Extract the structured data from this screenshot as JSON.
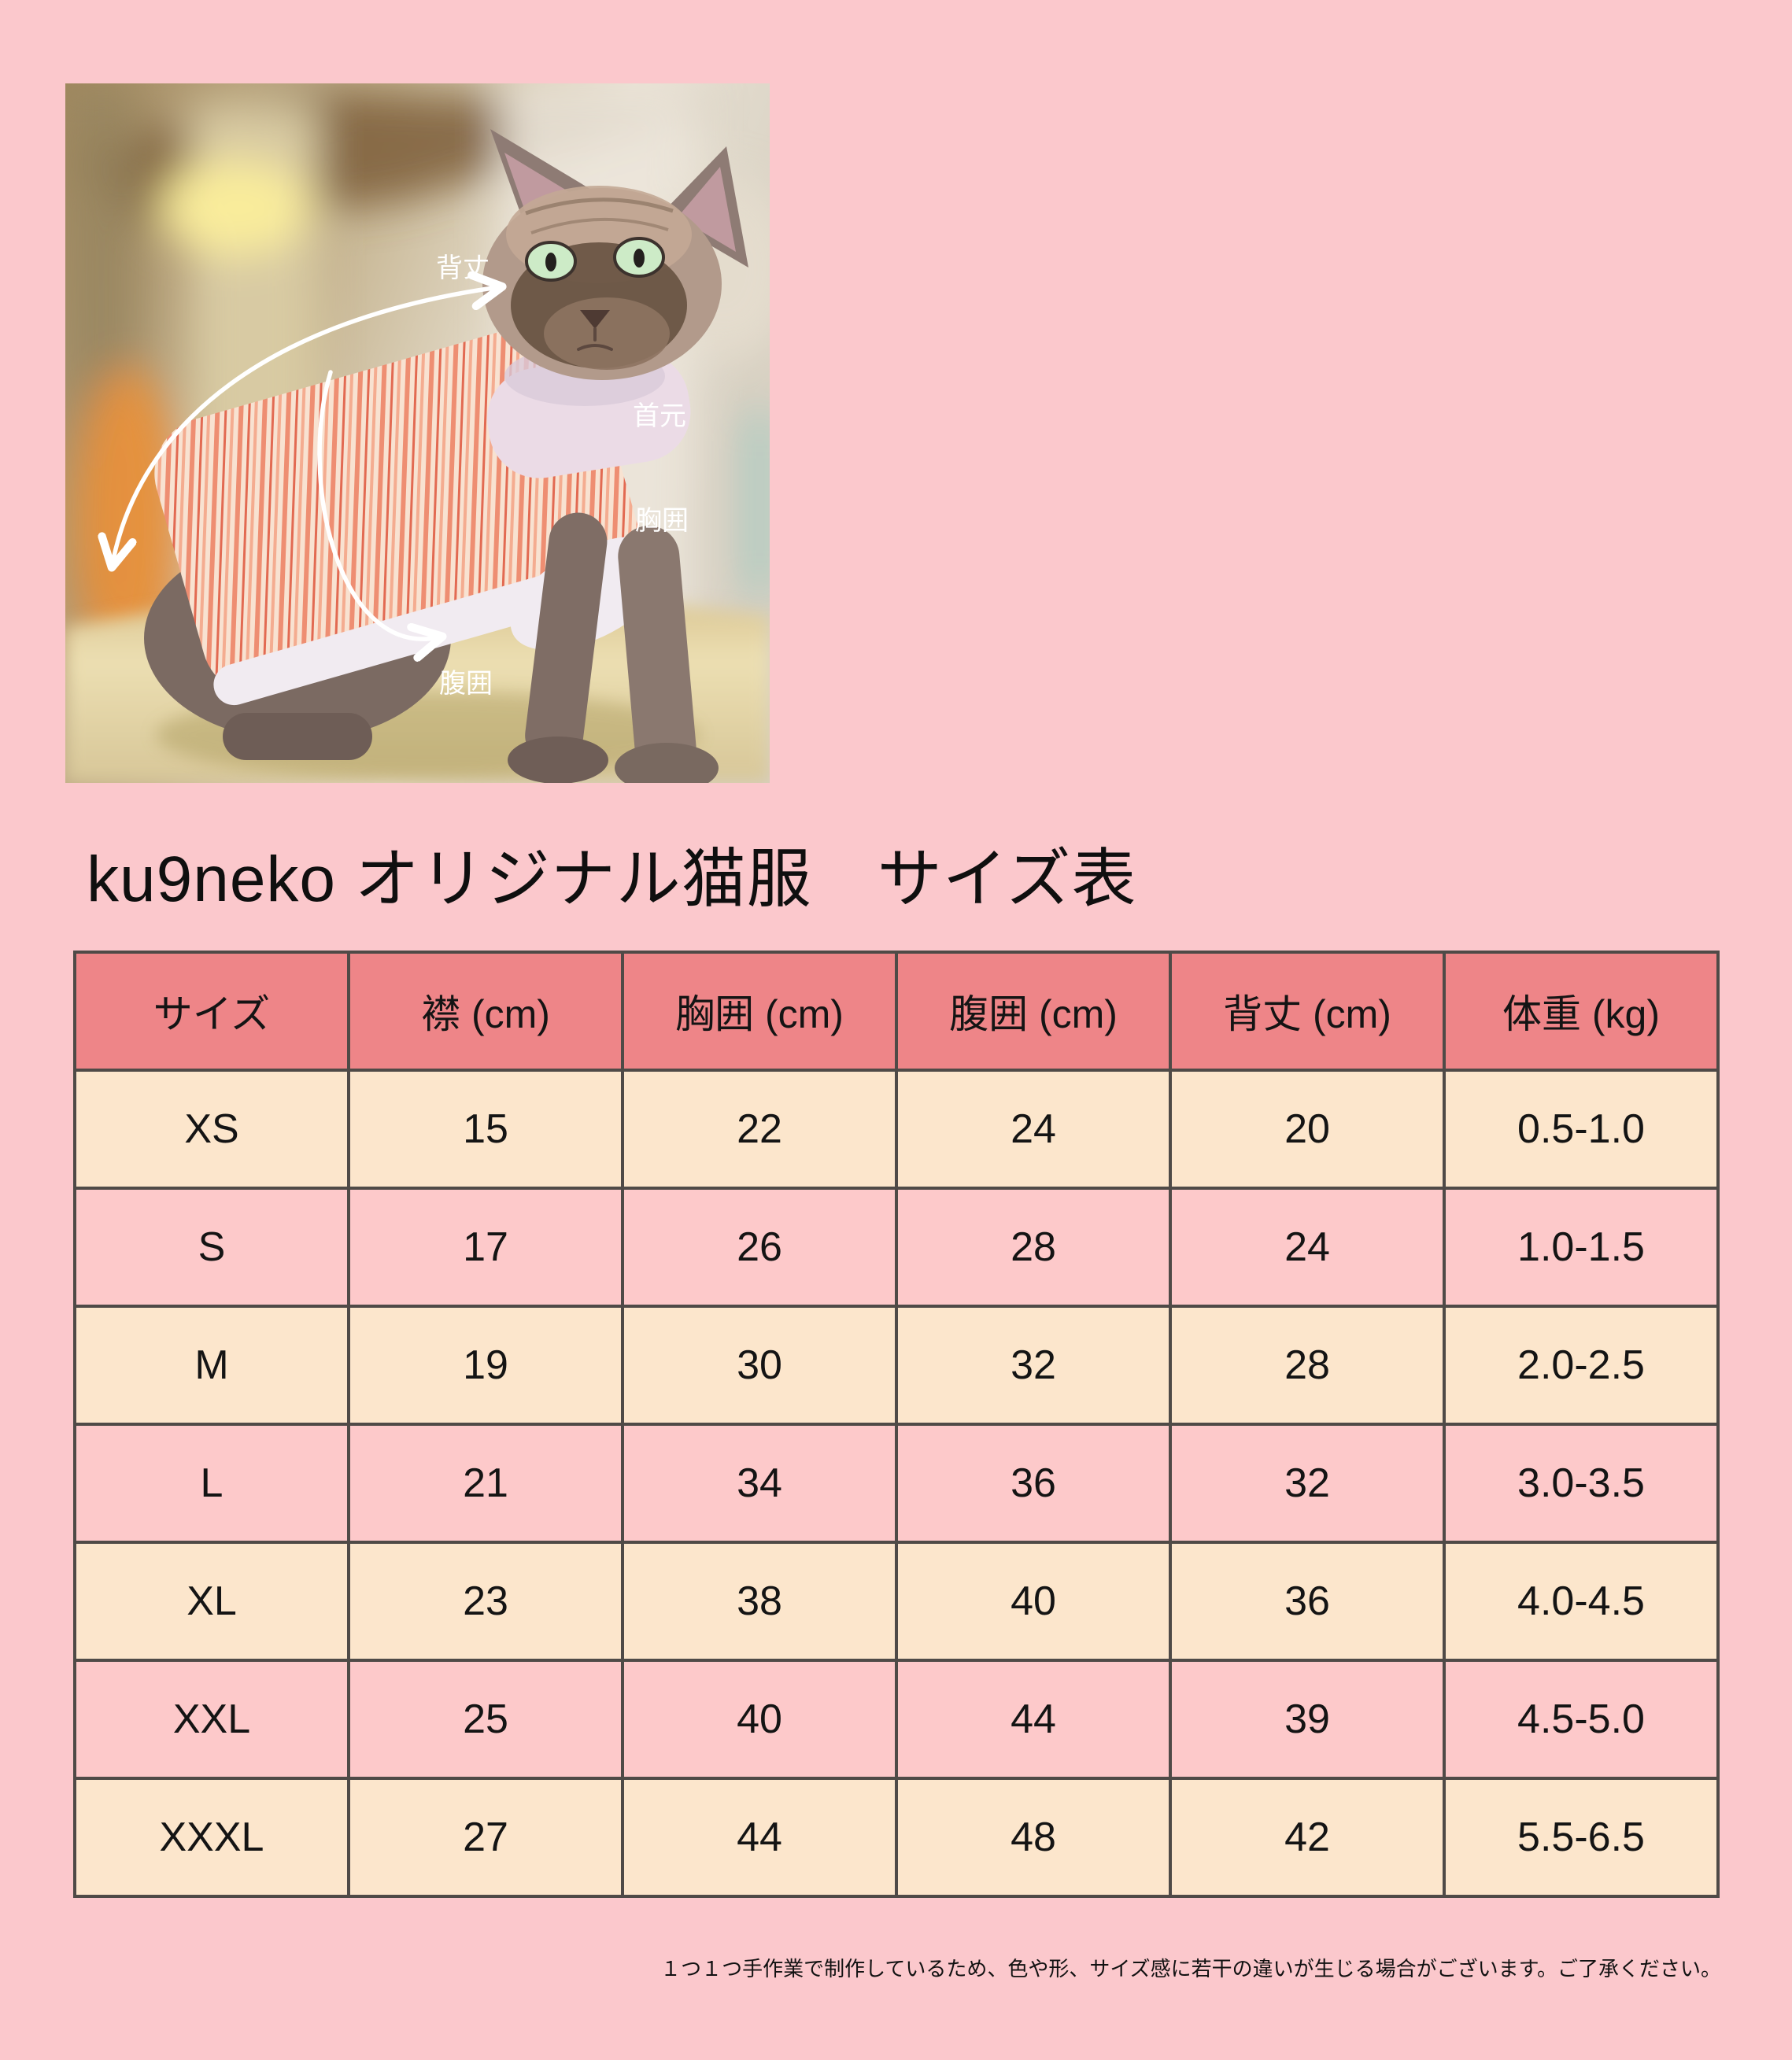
{
  "title": "ku9neko オリジナル猫服　サイズ表",
  "photo": {
    "description": "縞模様の猫服を着たスフィンクス猫の写真（採寸位置の説明図）",
    "labels": [
      {
        "id": "back-length",
        "text": "背丈"
      },
      {
        "id": "neck",
        "text": "首元"
      },
      {
        "id": "chest",
        "text": "胸囲"
      },
      {
        "id": "belly",
        "text": "腹囲"
      }
    ]
  },
  "table": {
    "headers": [
      "サイズ",
      "襟 (cm)",
      "胸囲 (cm)",
      "腹囲 (cm)",
      "背丈 (cm)",
      "体重 (kg)"
    ],
    "rows": [
      [
        "XS",
        "15",
        "22",
        "24",
        "20",
        "0.5-1.0"
      ],
      [
        "S",
        "17",
        "26",
        "28",
        "24",
        "1.0-1.5"
      ],
      [
        "M",
        "19",
        "30",
        "32",
        "28",
        "2.0-2.5"
      ],
      [
        "L",
        "21",
        "34",
        "36",
        "32",
        "3.0-3.5"
      ],
      [
        "XL",
        "23",
        "38",
        "40",
        "36",
        "4.0-4.5"
      ],
      [
        "XXL",
        "25",
        "40",
        "44",
        "39",
        "4.5-5.0"
      ],
      [
        "XXXL",
        "27",
        "44",
        "48",
        "42",
        "5.5-6.5"
      ]
    ]
  },
  "footer_note": "１つ１つ手作業で制作しているため、色や形、サイズ感に若干の違いが生じる場合がございます。ご了承ください。",
  "colors": {
    "page-bg": "#FBC8CC",
    "header-bg": "#EE8588",
    "row-cream": "#FCE6CC",
    "row-pink": "#FDC9CA",
    "border": "#4F4A47",
    "arrow": "#FFFFFF"
  }
}
